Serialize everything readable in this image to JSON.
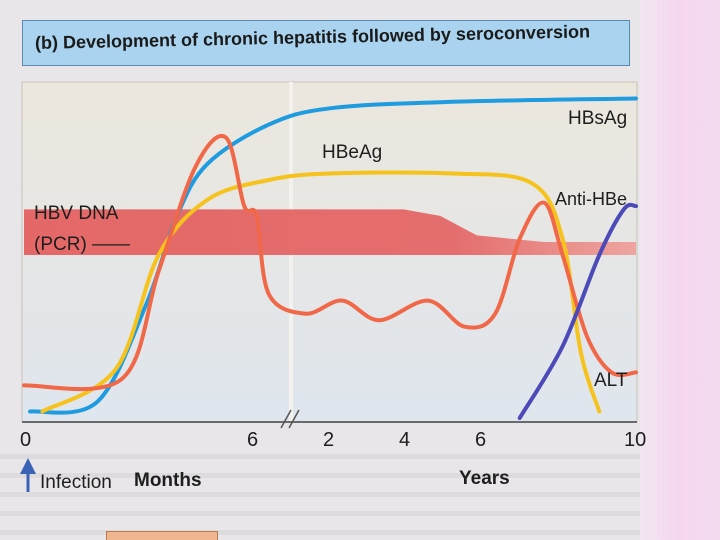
{
  "title": "(b) Development of chronic hepatitis followed by seroconversion",
  "chart_data": {
    "type": "line",
    "title": "(b) Development of chronic hepatitis followed by seroconversion",
    "x_segments": [
      {
        "label": "Months",
        "ticks": [
          "0",
          "6"
        ]
      },
      {
        "label": "Years",
        "ticks": [
          "2",
          "4",
          "6",
          "10"
        ]
      }
    ],
    "annotation_infection": "Infection",
    "axis_break": "//",
    "series": [
      {
        "name": "HBsAg",
        "color": "#1f9be0",
        "points": [
          [
            0.1,
            0.02
          ],
          [
            1.2,
            0.05
          ],
          [
            2,
            0.35
          ],
          [
            2.5,
            0.62
          ],
          [
            3,
            0.78
          ],
          [
            4,
            0.9
          ],
          [
            5,
            0.95
          ],
          [
            7,
            0.97
          ],
          [
            10,
            0.98
          ]
        ]
      },
      {
        "name": "HBeAg",
        "color": "#f5c31c",
        "points": [
          [
            0.3,
            0.02
          ],
          [
            1.5,
            0.15
          ],
          [
            2.2,
            0.5
          ],
          [
            3,
            0.67
          ],
          [
            4,
            0.73
          ],
          [
            5,
            0.75
          ],
          [
            7,
            0.75
          ],
          [
            8.3,
            0.72
          ],
          [
            8.8,
            0.55
          ],
          [
            9.1,
            0.2
          ],
          [
            9.4,
            0.02
          ]
        ]
      },
      {
        "name": "ALT",
        "color": "#f06848",
        "points": [
          [
            0,
            0.1
          ],
          [
            1.6,
            0.12
          ],
          [
            2.2,
            0.45
          ],
          [
            2.8,
            0.77
          ],
          [
            3.3,
            0.86
          ],
          [
            3.6,
            0.65
          ],
          [
            3.8,
            0.62
          ],
          [
            4,
            0.38
          ],
          [
            4.6,
            0.32
          ],
          [
            5.2,
            0.36
          ],
          [
            5.8,
            0.3
          ],
          [
            6.6,
            0.36
          ],
          [
            7.2,
            0.28
          ],
          [
            7.7,
            0.32
          ],
          [
            8.1,
            0.55
          ],
          [
            8.5,
            0.66
          ],
          [
            8.8,
            0.5
          ],
          [
            9.2,
            0.25
          ],
          [
            9.6,
            0.14
          ],
          [
            10,
            0.14
          ]
        ]
      },
      {
        "name": "Anti-HBe",
        "color": "#4c4ab8",
        "points": [
          [
            8.1,
            0.0
          ],
          [
            8.8,
            0.22
          ],
          [
            9.4,
            0.5
          ],
          [
            9.8,
            0.64
          ],
          [
            10,
            0.65
          ]
        ]
      },
      {
        "name": "HBV DNA (PCR)",
        "color": "#e64a4a",
        "type": "band",
        "top_points": [
          [
            0,
            0.64
          ],
          [
            6.2,
            0.64
          ],
          [
            6.8,
            0.62
          ],
          [
            7.4,
            0.56
          ],
          [
            8.5,
            0.54
          ],
          [
            10,
            0.54
          ]
        ],
        "bottom_points": [
          [
            0,
            0.5
          ],
          [
            10,
            0.5
          ]
        ]
      }
    ],
    "labels": {
      "hbsag": "HBsAg",
      "hbeag": "HBeAg",
      "anti_hbe": "Anti-HBe",
      "alt": "ALT",
      "hbv_dna_line1": "HBV DNA",
      "hbv_dna_line2": "(PCR) ——"
    },
    "ticks": {
      "zero": "0",
      "m6": "6",
      "y2": "2",
      "y4": "4",
      "y6": "6",
      "y10": "10"
    },
    "axis_labels": {
      "months": "Months",
      "years": "Years"
    }
  }
}
